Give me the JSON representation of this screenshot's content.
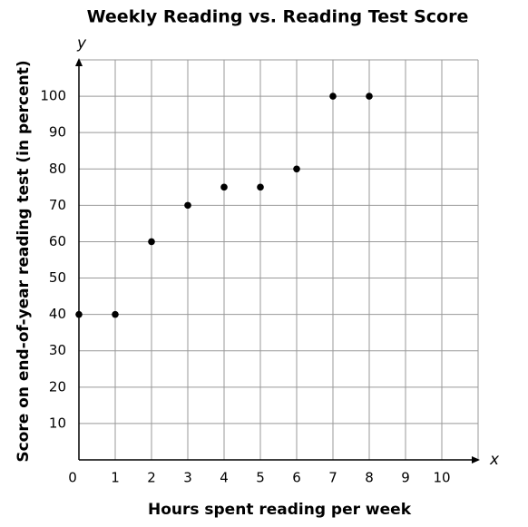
{
  "chart_data": {
    "type": "scatter",
    "title": "Weekly Reading vs. Reading Test Score",
    "x_label": "Hours spent reading per week",
    "y_label": "Score on end-of-year reading test (in percent)",
    "x_axis_letter": "x",
    "y_axis_letter": "y",
    "x": [
      0,
      1,
      2,
      3,
      4,
      5,
      6,
      7,
      8
    ],
    "values": [
      40,
      40,
      60,
      70,
      75,
      75,
      80,
      100,
      100
    ],
    "color": "#000000",
    "xlim": [
      0,
      11
    ],
    "ylim": [
      0,
      110
    ],
    "xticks": [
      0,
      1,
      2,
      3,
      4,
      5,
      6,
      7,
      8,
      9,
      10
    ],
    "yticks": [
      10,
      20,
      30,
      40,
      50,
      60,
      70,
      80,
      90,
      100
    ],
    "grid": true
  }
}
